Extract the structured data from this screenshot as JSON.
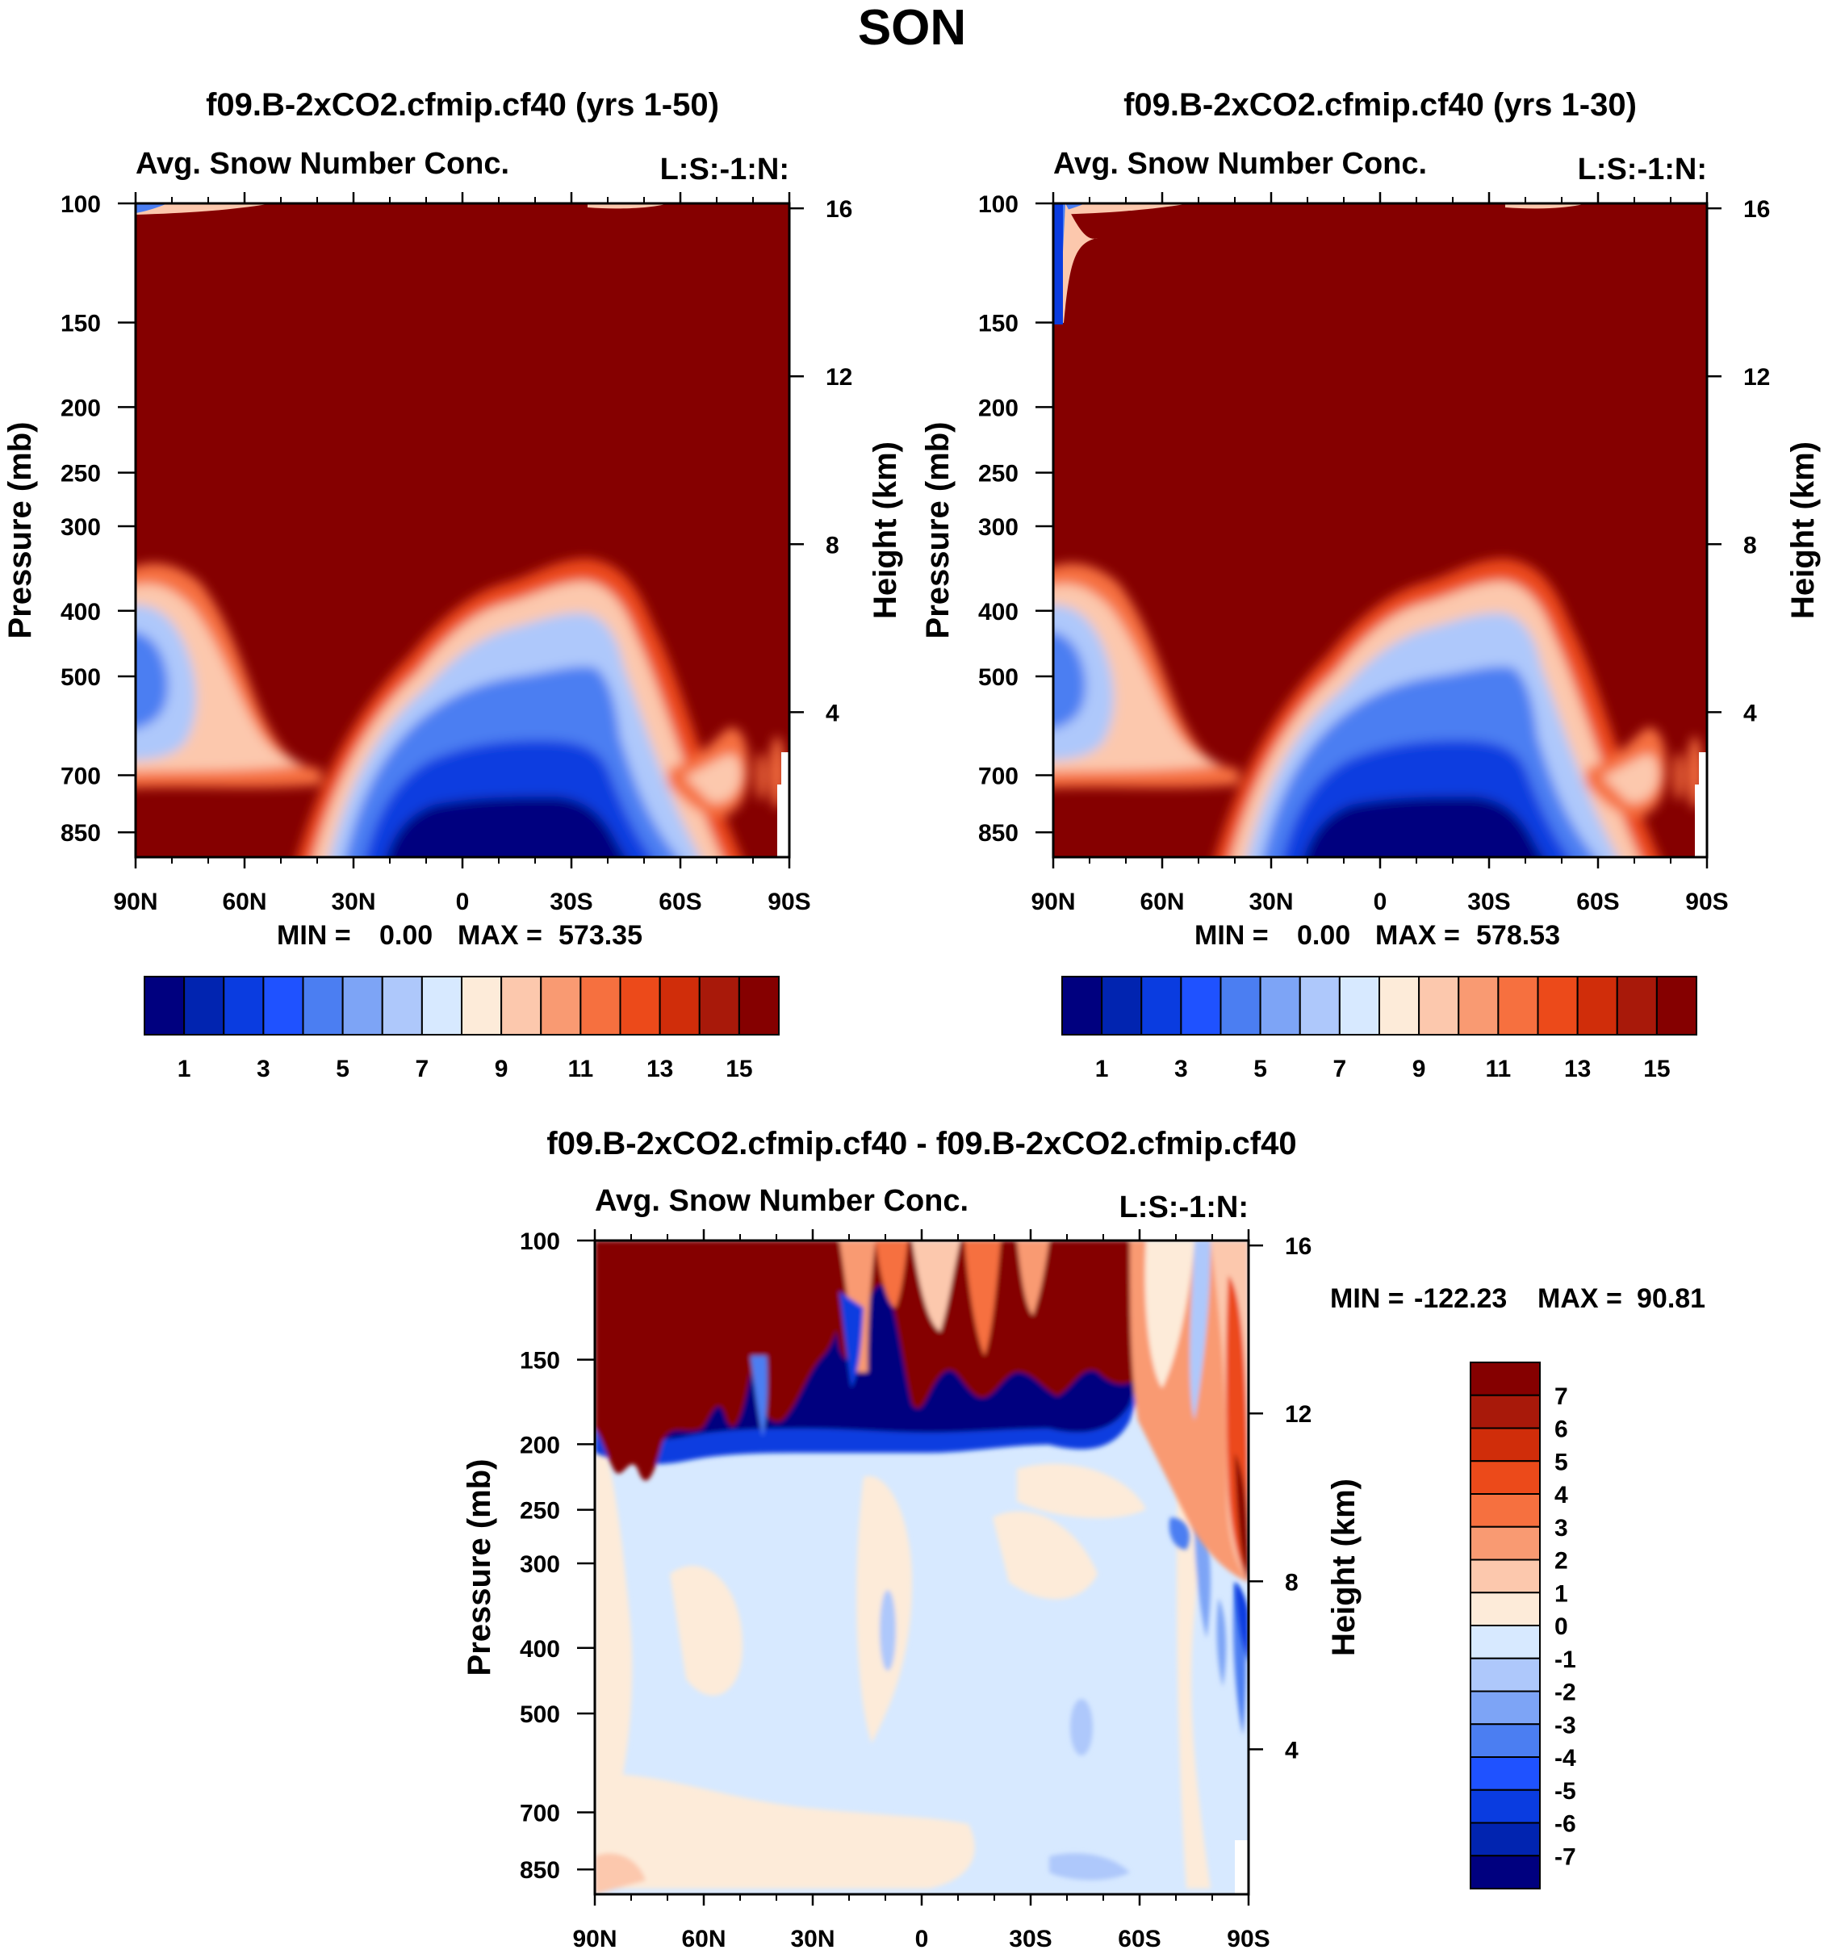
{
  "figure_title": "SON",
  "chart_data": [
    {
      "type": "heatmap",
      "panel": "top-left",
      "title": "f09.B-2xCO2.cfmip.cf40 (yrs 1-50)",
      "subtitle_left": "Avg. Snow Number Conc.",
      "subtitle_right": "L:S:-1:N:",
      "xlabel": "",
      "ylabel": "Pressure (mb)",
      "ylabel_right": "Height (km)",
      "x_ticks": [
        "90N",
        "60N",
        "30N",
        "0",
        "30S",
        "60S",
        "90S"
      ],
      "x_range": [
        90,
        -90
      ],
      "y_ticks": [
        "100",
        "150",
        "200",
        "250",
        "300",
        "400",
        "500",
        "700",
        "850"
      ],
      "y_range_mb": [
        100,
        925
      ],
      "y_right_ticks": [
        "16",
        "12",
        "8",
        "4"
      ],
      "stats": {
        "min_label": "MIN =",
        "min": "0.00",
        "max_label": "MAX =",
        "max": "573.35"
      },
      "colorbar_labels": [
        "1",
        "3",
        "5",
        "7",
        "9",
        "11",
        "13",
        "15"
      ]
    },
    {
      "type": "heatmap",
      "panel": "top-right",
      "title": "f09.B-2xCO2.cfmip.cf40 (yrs 1-30)",
      "subtitle_left": "Avg. Snow Number Conc.",
      "subtitle_right": "L:S:-1:N:",
      "xlabel": "",
      "ylabel": "Pressure (mb)",
      "ylabel_right": "Height (km)",
      "x_ticks": [
        "90N",
        "60N",
        "30N",
        "0",
        "30S",
        "60S",
        "90S"
      ],
      "x_range": [
        90,
        -90
      ],
      "y_ticks": [
        "100",
        "150",
        "200",
        "250",
        "300",
        "400",
        "500",
        "700",
        "850"
      ],
      "y_range_mb": [
        100,
        925
      ],
      "y_right_ticks": [
        "16",
        "12",
        "8",
        "4"
      ],
      "stats": {
        "min_label": "MIN =",
        "min": "0.00",
        "max_label": "MAX =",
        "max": "578.53"
      },
      "colorbar_labels": [
        "1",
        "3",
        "5",
        "7",
        "9",
        "11",
        "13",
        "15"
      ]
    },
    {
      "type": "heatmap",
      "panel": "bottom-difference",
      "title": "f09.B-2xCO2.cfmip.cf40 - f09.B-2xCO2.cfmip.cf40",
      "subtitle_left": "Avg. Snow Number Conc.",
      "subtitle_right": "L:S:-1:N:",
      "xlabel": "",
      "ylabel": "Pressure (mb)",
      "ylabel_right": "Height (km)",
      "x_ticks": [
        "90N",
        "60N",
        "30N",
        "0",
        "30S",
        "60S",
        "90S"
      ],
      "x_range": [
        90,
        -90
      ],
      "y_ticks": [
        "100",
        "150",
        "200",
        "250",
        "300",
        "400",
        "500",
        "700",
        "850"
      ],
      "y_range_mb": [
        100,
        925
      ],
      "y_right_ticks": [
        "16",
        "12",
        "8",
        "4"
      ],
      "stats": {
        "min_label": "MIN =",
        "min": "-122.23",
        "max_label": "MAX =",
        "max": "90.81"
      },
      "colorbar_labels": [
        "7",
        "6",
        "5",
        "4",
        "3",
        "2",
        "1",
        "0",
        "-1",
        "-2",
        "-3",
        "-4",
        "-5",
        "-6",
        "-7"
      ]
    }
  ],
  "colors": {
    "top_colorbar": [
      "#00007f",
      "#0124b0",
      "#0a3ce0",
      "#1f52ff",
      "#4b7ef2",
      "#7da4f6",
      "#aec8fb",
      "#d7e9ff",
      "#fdebd9",
      "#fcc8ad",
      "#f99a72",
      "#f6703f",
      "#ec4a1a",
      "#d02d0a",
      "#a8190a",
      "#850000"
    ],
    "diff_colorbar": [
      "#850000",
      "#a8190a",
      "#d02d0a",
      "#ec4a1a",
      "#f6703f",
      "#f99a72",
      "#fcc8ad",
      "#fdebd9",
      "#d7e9ff",
      "#aec8fb",
      "#7da4f6",
      "#4b7ef2",
      "#1f52ff",
      "#0a3ce0",
      "#0124b0",
      "#00007f"
    ]
  }
}
